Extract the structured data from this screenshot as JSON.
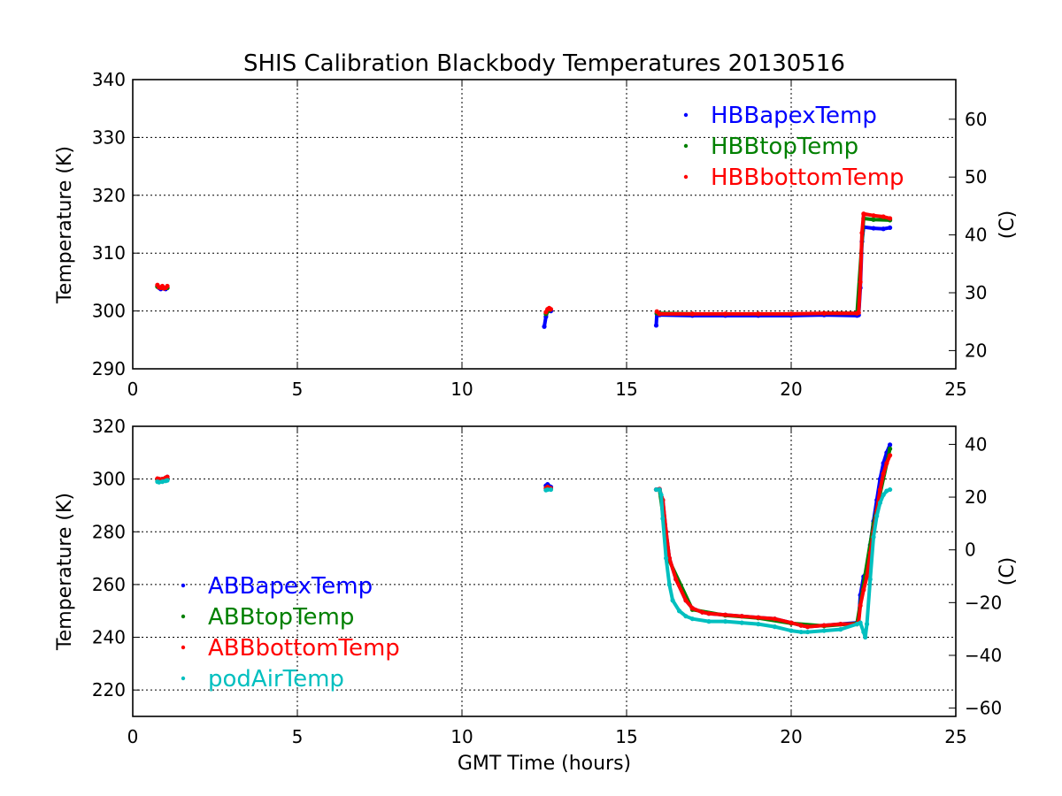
{
  "figure_title": "SHIS Calibration Blackbody Temperatures 20130516",
  "xlabel": "GMT Time (hours)",
  "chart_data": [
    {
      "type": "scatter",
      "title": "SHIS Calibration Blackbody Temperatures 20130516",
      "xlabel": "",
      "ylabel": "Temperature (K)",
      "ylabel_right": "(C)",
      "xlim": [
        0,
        25
      ],
      "ylim": [
        290,
        340
      ],
      "ylim_right_C": [
        16.85,
        66.85
      ],
      "xticks": [
        0,
        5,
        10,
        15,
        20,
        25
      ],
      "yticks": [
        290,
        300,
        310,
        320,
        330,
        340
      ],
      "yticks_right_C": [
        20,
        30,
        40,
        50,
        60
      ],
      "grid": true,
      "legend_position": "top-right",
      "series": [
        {
          "name": "HBBapexTemp",
          "color": "#0000ff",
          "points": [
            [
              0.75,
              304.3
            ],
            [
              0.8,
              304.0
            ],
            [
              0.85,
              303.8
            ],
            [
              0.9,
              304.1
            ],
            [
              0.95,
              303.9
            ],
            [
              1.0,
              303.8
            ],
            [
              1.05,
              304.0
            ],
            [
              12.5,
              297.3
            ],
            [
              12.55,
              299.0
            ],
            [
              12.6,
              300.1
            ],
            [
              12.65,
              300.2
            ],
            [
              12.7,
              300.0
            ],
            [
              15.9,
              297.5
            ],
            [
              15.92,
              299.5
            ],
            [
              16.0,
              299.3
            ],
            [
              17.0,
              299.2
            ],
            [
              18.0,
              299.2
            ],
            [
              19.0,
              299.2
            ],
            [
              20.0,
              299.2
            ],
            [
              21.0,
              299.3
            ],
            [
              22.0,
              299.2
            ],
            [
              22.05,
              299.3
            ],
            [
              22.1,
              304.0
            ],
            [
              22.15,
              312.0
            ],
            [
              22.2,
              314.5
            ],
            [
              22.5,
              314.3
            ],
            [
              22.8,
              314.2
            ],
            [
              23.0,
              314.4
            ]
          ]
        },
        {
          "name": "HBBtopTemp",
          "color": "#008000",
          "points": [
            [
              0.75,
              304.2
            ],
            [
              0.9,
              304.0
            ],
            [
              1.05,
              304.0
            ],
            [
              12.55,
              299.5
            ],
            [
              12.65,
              300.1
            ],
            [
              15.92,
              299.6
            ],
            [
              17.0,
              299.5
            ],
            [
              19.0,
              299.5
            ],
            [
              21.0,
              299.6
            ],
            [
              22.0,
              299.6
            ],
            [
              22.2,
              316.0
            ],
            [
              22.5,
              315.8
            ],
            [
              23.0,
              315.7
            ]
          ]
        },
        {
          "name": "HBBbottomTemp",
          "color": "#ff0000",
          "points": [
            [
              0.75,
              304.5
            ],
            [
              0.8,
              304.1
            ],
            [
              0.85,
              304.0
            ],
            [
              0.9,
              304.3
            ],
            [
              0.95,
              303.9
            ],
            [
              1.0,
              304.0
            ],
            [
              1.05,
              304.3
            ],
            [
              12.55,
              299.8
            ],
            [
              12.6,
              300.3
            ],
            [
              12.65,
              300.5
            ],
            [
              12.7,
              300.3
            ],
            [
              15.92,
              299.9
            ],
            [
              16.0,
              299.5
            ],
            [
              17.0,
              299.5
            ],
            [
              18.0,
              299.5
            ],
            [
              19.0,
              299.5
            ],
            [
              20.0,
              299.5
            ],
            [
              21.0,
              299.6
            ],
            [
              22.0,
              299.6
            ],
            [
              22.05,
              299.7
            ],
            [
              22.1,
              305.0
            ],
            [
              22.15,
              313.5
            ],
            [
              22.2,
              316.8
            ],
            [
              22.5,
              316.5
            ],
            [
              22.8,
              316.3
            ],
            [
              23.0,
              316.0
            ]
          ]
        }
      ]
    },
    {
      "type": "scatter",
      "xlabel": "GMT Time (hours)",
      "ylabel": "Temperature (K)",
      "ylabel_right": "(C)",
      "xlim": [
        0,
        25
      ],
      "ylim": [
        210,
        320
      ],
      "ylim_right_C": [
        -63.15,
        46.85
      ],
      "xticks": [
        0,
        5,
        10,
        15,
        20,
        25
      ],
      "yticks": [
        220,
        240,
        260,
        280,
        300,
        320
      ],
      "yticks_right_C": [
        -60,
        -40,
        -20,
        0,
        20,
        40
      ],
      "grid": true,
      "legend_position": "lower-left",
      "series": [
        {
          "name": "ABBapexTemp",
          "color": "#0000ff",
          "points": [
            [
              0.75,
              300.0
            ],
            [
              0.9,
              300.0
            ],
            [
              1.05,
              300.8
            ],
            [
              12.55,
              297.5
            ],
            [
              12.6,
              298.0
            ],
            [
              12.7,
              297.0
            ],
            [
              15.9,
              296.0
            ],
            [
              16.0,
              296.2
            ],
            [
              16.1,
              292.0
            ],
            [
              16.2,
              280.0
            ],
            [
              16.3,
              270.0
            ],
            [
              16.5,
              262.0
            ],
            [
              16.8,
              254.0
            ],
            [
              17.0,
              251.0
            ],
            [
              17.3,
              249.5
            ],
            [
              17.5,
              249.0
            ],
            [
              18.0,
              248.5
            ],
            [
              18.5,
              248.0
            ],
            [
              19.0,
              247.5
            ],
            [
              19.5,
              247.0
            ],
            [
              20.0,
              245.5
            ],
            [
              20.3,
              244.5
            ],
            [
              20.5,
              244.0
            ],
            [
              21.0,
              244.5
            ],
            [
              21.5,
              245.0
            ],
            [
              22.0,
              245.5
            ],
            [
              22.05,
              246.0
            ],
            [
              22.1,
              256.0
            ],
            [
              22.2,
              263.0
            ],
            [
              22.3,
              265.0
            ],
            [
              22.4,
              275.0
            ],
            [
              22.5,
              284.0
            ],
            [
              22.6,
              292.0
            ],
            [
              22.7,
              300.0
            ],
            [
              22.8,
              306.0
            ],
            [
              22.9,
              310.0
            ],
            [
              23.0,
              313.0
            ]
          ]
        },
        {
          "name": "ABBtopTemp",
          "color": "#008000",
          "points": [
            [
              0.75,
              299.8
            ],
            [
              1.0,
              300.2
            ],
            [
              12.6,
              297.0
            ],
            [
              16.0,
              296.0
            ],
            [
              16.3,
              269.0
            ],
            [
              17.0,
              250.5
            ],
            [
              18.0,
              248.3
            ],
            [
              19.0,
              247.3
            ],
            [
              20.0,
              245.3
            ],
            [
              21.0,
              244.3
            ],
            [
              22.0,
              245.3
            ],
            [
              22.5,
              283.0
            ],
            [
              23.0,
              311.5
            ]
          ]
        },
        {
          "name": "ABBbottomTemp",
          "color": "#ff0000",
          "points": [
            [
              0.75,
              300.2
            ],
            [
              0.8,
              300.0
            ],
            [
              0.9,
              300.0
            ],
            [
              1.0,
              300.5
            ],
            [
              1.05,
              300.8
            ],
            [
              12.55,
              296.5
            ],
            [
              12.6,
              297.0
            ],
            [
              12.7,
              296.5
            ],
            [
              15.9,
              296.0
            ],
            [
              16.0,
              296.2
            ],
            [
              16.1,
              292.0
            ],
            [
              16.2,
              280.0
            ],
            [
              16.3,
              270.0
            ],
            [
              16.5,
              262.0
            ],
            [
              16.8,
              254.0
            ],
            [
              17.0,
              251.0
            ],
            [
              17.3,
              249.5
            ],
            [
              17.5,
              249.0
            ],
            [
              18.0,
              248.5
            ],
            [
              18.5,
              248.0
            ],
            [
              19.0,
              247.5
            ],
            [
              19.5,
              247.0
            ],
            [
              20.0,
              245.5
            ],
            [
              20.3,
              244.5
            ],
            [
              20.5,
              244.0
            ],
            [
              21.0,
              244.5
            ],
            [
              21.5,
              245.0
            ],
            [
              22.0,
              245.0
            ],
            [
              22.05,
              246.0
            ],
            [
              22.1,
              252.0
            ],
            [
              22.2,
              258.0
            ],
            [
              22.3,
              263.0
            ],
            [
              22.4,
              272.0
            ],
            [
              22.5,
              280.0
            ],
            [
              22.6,
              288.0
            ],
            [
              22.7,
              296.0
            ],
            [
              22.8,
              302.0
            ],
            [
              22.9,
              306.0
            ],
            [
              23.0,
              309.0
            ]
          ]
        },
        {
          "name": "podAirTemp",
          "color": "#00bfbf",
          "points": [
            [
              0.75,
              299.0
            ],
            [
              0.8,
              298.8
            ],
            [
              0.9,
              299.0
            ],
            [
              1.0,
              299.3
            ],
            [
              1.05,
              299.5
            ],
            [
              12.55,
              295.8
            ],
            [
              12.6,
              296.0
            ],
            [
              12.7,
              296.0
            ],
            [
              15.9,
              296.0
            ],
            [
              16.0,
              296.0
            ],
            [
              16.05,
              294.0
            ],
            [
              16.1,
              285.0
            ],
            [
              16.2,
              270.0
            ],
            [
              16.3,
              260.0
            ],
            [
              16.4,
              254.0
            ],
            [
              16.6,
              250.0
            ],
            [
              16.8,
              248.0
            ],
            [
              17.0,
              247.0
            ],
            [
              17.5,
              246.0
            ],
            [
              18.0,
              246.0
            ],
            [
              18.5,
              245.5
            ],
            [
              19.0,
              245.0
            ],
            [
              19.5,
              244.0
            ],
            [
              20.0,
              242.5
            ],
            [
              20.3,
              242.0
            ],
            [
              20.5,
              242.0
            ],
            [
              21.0,
              242.5
            ],
            [
              21.5,
              243.0
            ],
            [
              22.0,
              245.0
            ],
            [
              22.1,
              245.5
            ],
            [
              22.2,
              242.0
            ],
            [
              22.25,
              240.0
            ],
            [
              22.3,
              245.0
            ],
            [
              22.4,
              262.0
            ],
            [
              22.5,
              278.0
            ],
            [
              22.6,
              286.0
            ],
            [
              22.7,
              291.0
            ],
            [
              22.8,
              294.0
            ],
            [
              22.9,
              295.5
            ],
            [
              23.0,
              296.0
            ]
          ]
        }
      ]
    }
  ]
}
